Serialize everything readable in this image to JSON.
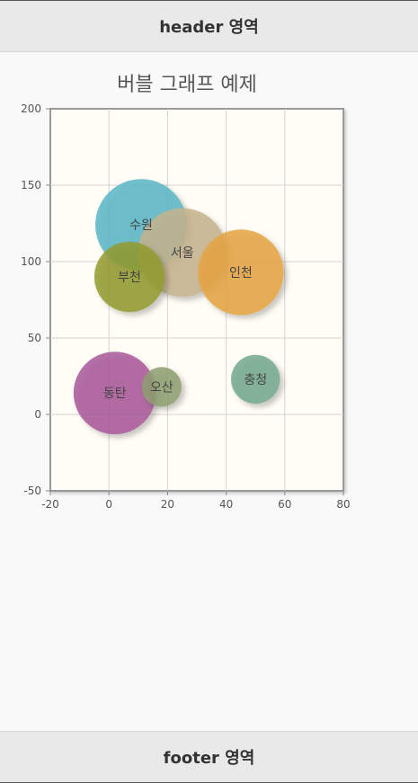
{
  "header": {
    "title": "header 영역"
  },
  "footer": {
    "title": "footer 영역"
  },
  "chart_data": {
    "type": "bubble",
    "title": "버블 그래프 예제",
    "xlim": [
      -20,
      80
    ],
    "ylim": [
      -50,
      200
    ],
    "x_ticks": [
      -20,
      0,
      20,
      40,
      60,
      80
    ],
    "y_ticks": [
      -50,
      0,
      50,
      100,
      150,
      200
    ],
    "grid": true,
    "points": [
      {
        "name": "수원",
        "x": 11,
        "y": 124,
        "r": 30,
        "color": "#5bb6c8"
      },
      {
        "name": "서울",
        "x": 25,
        "y": 106,
        "r": 29,
        "color": "#c5b48d"
      },
      {
        "name": "인천",
        "x": 45,
        "y": 93,
        "r": 28,
        "color": "#e6a443"
      },
      {
        "name": "부천",
        "x": 7,
        "y": 90,
        "r": 23,
        "color": "#939b2f"
      },
      {
        "name": "동탄",
        "x": 2,
        "y": 14,
        "r": 27,
        "color": "#a9589a"
      },
      {
        "name": "오산",
        "x": 18,
        "y": 18,
        "r": 13,
        "color": "#8e9f72"
      },
      {
        "name": "충청",
        "x": 50,
        "y": 23,
        "r": 16,
        "color": "#74a88e"
      }
    ]
  }
}
